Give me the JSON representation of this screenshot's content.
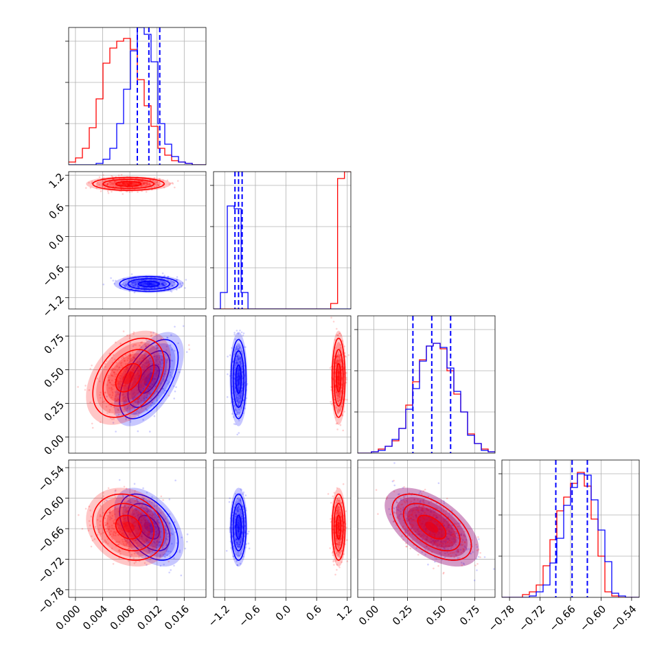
{
  "chart_data": {
    "type": "corner",
    "title": "",
    "grid": true,
    "parameters": [
      {
        "range": [
          -0.001,
          0.0192
        ],
        "ticks": [
          "0.000",
          "0.004",
          "0.008",
          "0.012",
          "0.016"
        ],
        "tick_values": [
          0.0,
          0.004,
          0.008,
          0.012,
          0.016
        ]
      },
      {
        "range": [
          -1.42,
          1.27
        ],
        "ticks": [
          "−1.2",
          "−0.6",
          "0.0",
          "0.6",
          "1.2"
        ],
        "tick_values": [
          -1.2,
          -0.6,
          0.0,
          0.6,
          1.2
        ]
      },
      {
        "range": [
          -0.12,
          0.9
        ],
        "ticks": [
          "0.00",
          "0.25",
          "0.50",
          "0.75"
        ],
        "tick_values": [
          0.0,
          0.25,
          0.5,
          0.75
        ]
      },
      {
        "range": [
          -0.795,
          -0.525
        ],
        "ticks": [
          "−0.78",
          "−0.72",
          "−0.66",
          "−0.60",
          "−0.54"
        ],
        "tick_values": [
          -0.78,
          -0.72,
          -0.66,
          -0.6,
          -0.54
        ]
      }
    ],
    "series": [
      {
        "color": "#0000ff",
        "quantile_lines": [
          [
            0.0091,
            0.0108,
            0.0124
          ],
          [
            -1.0,
            -0.93,
            -0.86
          ],
          [
            0.29,
            0.43,
            0.57
          ],
          [
            -0.689,
            -0.657,
            -0.627
          ]
        ],
        "histograms": [
          {
            "edges_start": -0.001,
            "bin_width": 0.00101,
            "heights": [
              0,
              0,
              0,
              0,
              0.01,
              0.04,
              0.12,
              0.3,
              0.55,
              0.83,
              1.0,
              0.95,
              0.75,
              0.3,
              0.15,
              0.06,
              0.02,
              0.01,
              0,
              0
            ]
          },
          {
            "edges_start": -1.42,
            "bin_width": 0.135,
            "heights": [
              0,
              0.12,
              0.75,
              0.73,
              0.12,
              0,
              0,
              0,
              0,
              0,
              0,
              0,
              0,
              0,
              0,
              0,
              0,
              0,
              0,
              0
            ]
          },
          {
            "edges_start": -0.12,
            "bin_width": 0.051,
            "heights": [
              0,
              0,
              0.01,
              0.02,
              0.05,
              0.1,
              0.18,
              0.32,
              0.47,
              0.67,
              0.78,
              0.8,
              0.77,
              0.62,
              0.45,
              0.3,
              0.13,
              0.07,
              0.02,
              0.01
            ]
          },
          {
            "edges_start": -0.795,
            "bin_width": 0.0135,
            "heights": [
              0,
              0,
              0,
              0,
              0.01,
              0.04,
              0.09,
              0.25,
              0.43,
              0.67,
              0.8,
              0.9,
              0.89,
              0.71,
              0.49,
              0.26,
              0.03,
              0.01,
              0,
              0
            ]
          }
        ],
        "pairs": [
          {
            "x_param": 0,
            "y_param": 1,
            "center": [
              0.0108,
              -0.93
            ],
            "sigma": [
              0.00205,
              0.07
            ],
            "rho": 0.0
          },
          {
            "x_param": 0,
            "y_param": 2,
            "center": [
              0.0108,
              0.43
            ],
            "sigma": [
              0.00205,
              0.14
            ],
            "rho": 0.55
          },
          {
            "x_param": 1,
            "y_param": 2,
            "center": [
              -0.93,
              0.43
            ],
            "sigma": [
              0.07,
              0.14
            ],
            "rho": 0.0
          },
          {
            "x_param": 0,
            "y_param": 3,
            "center": [
              0.0108,
              -0.657
            ],
            "sigma": [
              0.00205,
              0.031
            ],
            "rho": -0.45
          },
          {
            "x_param": 1,
            "y_param": 3,
            "center": [
              -0.93,
              -0.657
            ],
            "sigma": [
              0.07,
              0.031
            ],
            "rho": 0.0
          },
          {
            "x_param": 2,
            "y_param": 3,
            "center": [
              0.43,
              -0.657
            ],
            "sigma": [
              0.14,
              0.031
            ],
            "rho": -0.55
          }
        ]
      },
      {
        "color": "#ff0000",
        "quantile_lines": [],
        "histograms": [
          {
            "edges_start": -0.001,
            "bin_width": 0.00101,
            "heights": [
              0.02,
              0.05,
              0.12,
              0.27,
              0.48,
              0.74,
              0.85,
              0.9,
              0.92,
              0.84,
              0.62,
              0.43,
              0.28,
              0.12,
              0.07,
              0.03,
              0.02,
              0.01,
              0,
              0
            ]
          },
          {
            "edges_start": -1.42,
            "bin_width": 0.135,
            "heights": [
              0,
              0,
              0,
              0,
              0,
              0,
              0,
              0,
              0,
              0,
              0,
              0,
              0,
              0,
              0,
              0,
              0,
              0.04,
              0.95,
              1.0
            ]
          },
          {
            "edges_start": -0.12,
            "bin_width": 0.051,
            "heights": [
              0,
              0,
              0.01,
              0.03,
              0.05,
              0.09,
              0.18,
              0.35,
              0.52,
              0.68,
              0.78,
              0.8,
              0.76,
              0.6,
              0.43,
              0.3,
              0.14,
              0.07,
              0.03,
              0.01
            ]
          },
          {
            "edges_start": -0.795,
            "bin_width": 0.0135,
            "heights": [
              0,
              0,
              0,
              0.02,
              0.04,
              0.09,
              0.23,
              0.42,
              0.63,
              0.73,
              0.83,
              0.91,
              0.81,
              0.57,
              0.3,
              0.04,
              0.01,
              0,
              0,
              0
            ]
          }
        ],
        "pairs": [
          {
            "x_param": 0,
            "y_param": 1,
            "center": [
              0.0078,
              1.03
            ],
            "sigma": [
              0.0025,
              0.06
            ],
            "rho": 0.0
          },
          {
            "x_param": 0,
            "y_param": 2,
            "center": [
              0.0078,
              0.44
            ],
            "sigma": [
              0.0025,
              0.14
            ],
            "rho": 0.4
          },
          {
            "x_param": 1,
            "y_param": 2,
            "center": [
              1.03,
              0.44
            ],
            "sigma": [
              0.06,
              0.14
            ],
            "rho": 0.0
          },
          {
            "x_param": 0,
            "y_param": 3,
            "center": [
              0.0078,
              -0.657
            ],
            "sigma": [
              0.0025,
              0.031
            ],
            "rho": -0.2
          },
          {
            "x_param": 1,
            "y_param": 3,
            "center": [
              1.03,
              -0.657
            ],
            "sigma": [
              0.06,
              0.031
            ],
            "rho": 0.0
          },
          {
            "x_param": 2,
            "y_param": 3,
            "center": [
              0.43,
              -0.657
            ],
            "sigma": [
              0.14,
              0.031
            ],
            "rho": -0.55
          }
        ]
      }
    ]
  }
}
